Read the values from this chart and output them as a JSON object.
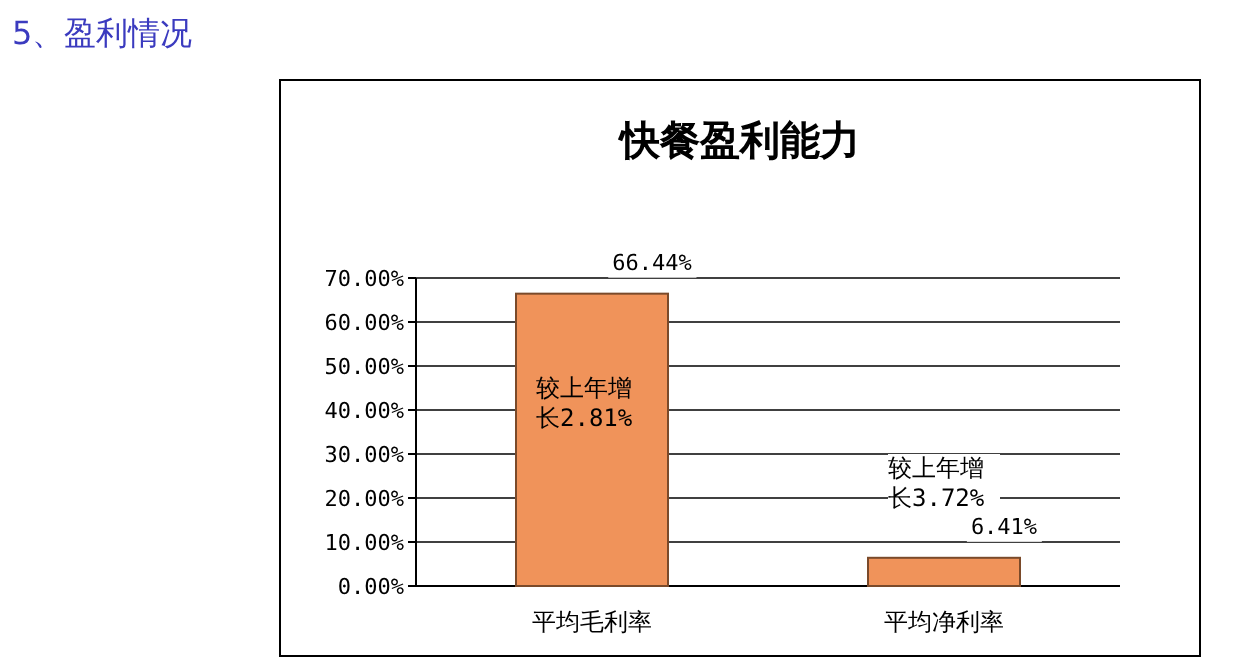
{
  "chart_data": {
    "type": "bar",
    "title": "快餐盈利能力",
    "subtitle": "5、盈利情况",
    "categories": [
      "平均毛利率",
      "平均净利率"
    ],
    "values": [
      66.44,
      6.41
    ],
    "color": "#f0935a",
    "value_labels": [
      "66.44%",
      "6.41%"
    ],
    "ylim": [
      0,
      70
    ],
    "yticks": [
      {
        "value": 0,
        "label": "0.00%"
      },
      {
        "value": 10,
        "label": "10.00%"
      },
      {
        "value": 20,
        "label": "20.00%"
      },
      {
        "value": 30,
        "label": "30.00%"
      },
      {
        "value": 40,
        "label": "40.00%"
      },
      {
        "value": 50,
        "label": "50.00%"
      },
      {
        "value": 60,
        "label": "60.00%"
      },
      {
        "value": 70,
        "label": "70.00%"
      }
    ],
    "grid": "y",
    "annotations": [
      "较上年增长2.81%",
      "较上年增长3.72%"
    ]
  }
}
